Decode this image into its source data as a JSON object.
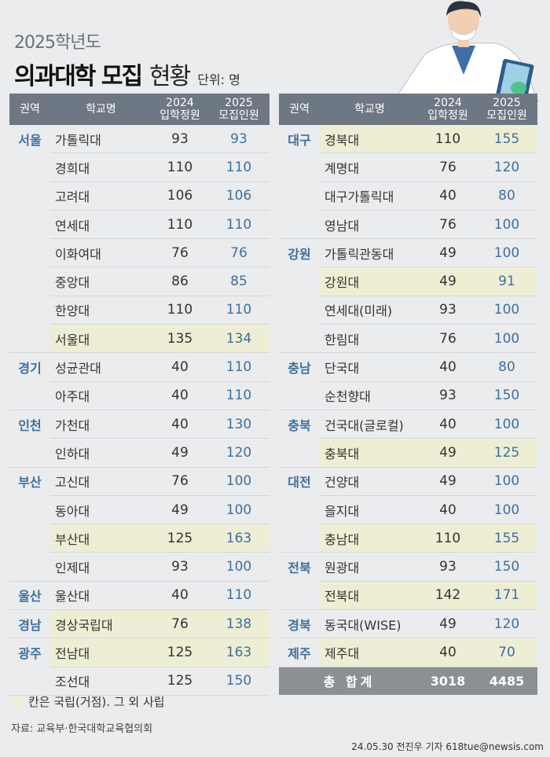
{
  "header": {
    "year": "2025학년도",
    "title_bold": "의과대학 모집",
    "title_light": "현황",
    "unit": "단위: 명"
  },
  "columns": {
    "region": "권역",
    "school": "학교명",
    "y2024_a": "2024",
    "y2024_b": "입학정원",
    "y2025_a": "2025",
    "y2025_b": "모집인원"
  },
  "left_rows": [
    {
      "region": "서울",
      "school": "가톨릭대",
      "v2024": "93",
      "v2025": "93",
      "national": false,
      "span": 8
    },
    {
      "region": "",
      "school": "경희대",
      "v2024": "110",
      "v2025": "110",
      "national": false
    },
    {
      "region": "",
      "school": "고려대",
      "v2024": "106",
      "v2025": "106",
      "national": false
    },
    {
      "region": "",
      "school": "연세대",
      "v2024": "110",
      "v2025": "110",
      "national": false
    },
    {
      "region": "",
      "school": "이화여대",
      "v2024": "76",
      "v2025": "76",
      "national": false
    },
    {
      "region": "",
      "school": "중앙대",
      "v2024": "86",
      "v2025": "85",
      "national": false
    },
    {
      "region": "",
      "school": "한양대",
      "v2024": "110",
      "v2025": "110",
      "national": false
    },
    {
      "region": "",
      "school": "서울대",
      "v2024": "135",
      "v2025": "134",
      "national": true
    },
    {
      "region": "경기",
      "school": "성균관대",
      "v2024": "40",
      "v2025": "110",
      "national": false,
      "span": 2
    },
    {
      "region": "",
      "school": "아주대",
      "v2024": "40",
      "v2025": "110",
      "national": false
    },
    {
      "region": "인천",
      "school": "가천대",
      "v2024": "40",
      "v2025": "130",
      "national": false,
      "span": 2
    },
    {
      "region": "",
      "school": "인하대",
      "v2024": "49",
      "v2025": "120",
      "national": false
    },
    {
      "region": "부산",
      "school": "고신대",
      "v2024": "76",
      "v2025": "100",
      "national": false,
      "span": 4
    },
    {
      "region": "",
      "school": "동아대",
      "v2024": "49",
      "v2025": "100",
      "national": false
    },
    {
      "region": "",
      "school": "부산대",
      "v2024": "125",
      "v2025": "163",
      "national": true
    },
    {
      "region": "",
      "school": "인제대",
      "v2024": "93",
      "v2025": "100",
      "national": false
    },
    {
      "region": "울산",
      "school": "울산대",
      "v2024": "40",
      "v2025": "110",
      "national": false,
      "span": 1
    },
    {
      "region": "경남",
      "school": "경상국립대",
      "v2024": "76",
      "v2025": "138",
      "national": true,
      "span": 1
    },
    {
      "region": "광주",
      "school": "전남대",
      "v2024": "125",
      "v2025": "163",
      "national": true,
      "span": 2
    },
    {
      "region": "",
      "school": "조선대",
      "v2024": "125",
      "v2025": "150",
      "national": false
    }
  ],
  "right_rows": [
    {
      "region": "대구",
      "school": "경북대",
      "v2024": "110",
      "v2025": "155",
      "national": true,
      "span": 4
    },
    {
      "region": "",
      "school": "계명대",
      "v2024": "76",
      "v2025": "120",
      "national": false
    },
    {
      "region": "",
      "school": "대구가톨릭대",
      "v2024": "40",
      "v2025": "80",
      "national": false
    },
    {
      "region": "",
      "school": "영남대",
      "v2024": "76",
      "v2025": "100",
      "national": false
    },
    {
      "region": "강원",
      "school": "가톨릭관동대",
      "v2024": "49",
      "v2025": "100",
      "national": false,
      "span": 4
    },
    {
      "region": "",
      "school": "강원대",
      "v2024": "49",
      "v2025": "91",
      "national": true
    },
    {
      "region": "",
      "school": "연세대(미래)",
      "v2024": "93",
      "v2025": "100",
      "national": false
    },
    {
      "region": "",
      "school": "한림대",
      "v2024": "76",
      "v2025": "100",
      "national": false
    },
    {
      "region": "충남",
      "school": "단국대",
      "v2024": "40",
      "v2025": "80",
      "national": false,
      "span": 2
    },
    {
      "region": "",
      "school": "순천향대",
      "v2024": "93",
      "v2025": "150",
      "national": false
    },
    {
      "region": "충북",
      "school": "건국대(글로컬)",
      "v2024": "40",
      "v2025": "100",
      "national": false,
      "span": 2
    },
    {
      "region": "",
      "school": "충북대",
      "v2024": "49",
      "v2025": "125",
      "national": true
    },
    {
      "region": "대전",
      "school": "건양대",
      "v2024": "49",
      "v2025": "100",
      "national": false,
      "span": 3
    },
    {
      "region": "",
      "school": "을지대",
      "v2024": "40",
      "v2025": "100",
      "national": false
    },
    {
      "region": "",
      "school": "충남대",
      "v2024": "110",
      "v2025": "155",
      "national": true
    },
    {
      "region": "전북",
      "school": "원광대",
      "v2024": "93",
      "v2025": "150",
      "national": false,
      "span": 2
    },
    {
      "region": "",
      "school": "전북대",
      "v2024": "142",
      "v2025": "171",
      "national": true
    },
    {
      "region": "경북",
      "school": "동국대(WISE)",
      "v2024": "49",
      "v2025": "120",
      "national": false,
      "span": 1
    },
    {
      "region": "제주",
      "school": "제주대",
      "v2024": "40",
      "v2025": "70",
      "national": true,
      "span": 1
    }
  ],
  "total": {
    "label": "총 합계",
    "v2024": "3018",
    "v2025": "4485"
  },
  "legend": "칸은 국립(거점). 그 외 사립",
  "source": "자료: 교육부·한국대학교육협의회",
  "credit": "24.05.30 전진우 기자 618tue@newsis.com",
  "colors": {
    "header_bg": "#6e7884",
    "region_text": "#3e6f9d",
    "national_bg": "#eeeed5",
    "total_bg": "#8c8f93",
    "page_bg": "#ebecee"
  }
}
